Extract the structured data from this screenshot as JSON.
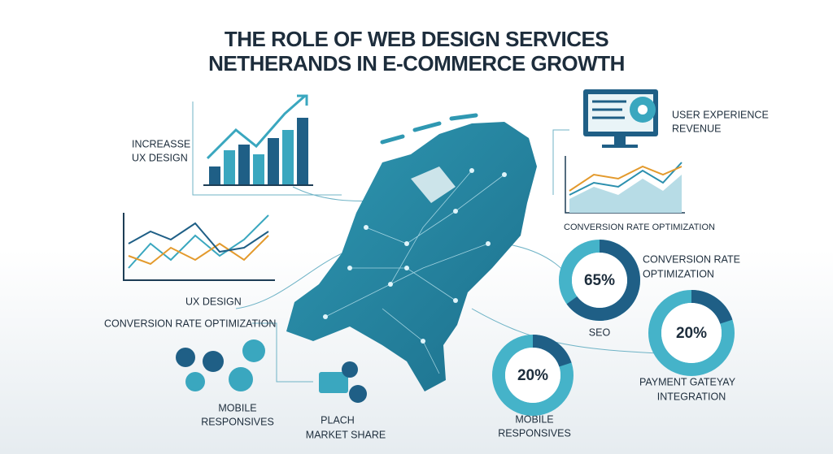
{
  "header": {
    "title_lines": [
      "THE ROLE OF WEB DESIGN SERVICES",
      "NETHERANDS IN E-COMMERCE GROWTH"
    ]
  },
  "labels": {
    "increase": [
      "INCREASSE",
      "UX DESIGN"
    ],
    "user_experience": [
      "USER EXPERIENCE",
      "REVENUE"
    ],
    "cro_chart": [
      "CONVERSION RATE OPTIMIZATION"
    ],
    "cro_donut": [
      "CONVERSION RATE",
      "OPTIMIZATION"
    ],
    "ux_design": [
      "UX DESIGN"
    ],
    "cro_left": [
      "CONVERSION RATE OPTIMIZATION"
    ],
    "mobile_left": [
      "MOBILE",
      "RESPONSIVES"
    ],
    "market_share": [
      "PLACH",
      "MARKET SHARE"
    ],
    "seo": [
      "SEO"
    ],
    "payment": [
      "PAYMENT GATEYAY",
      "INTEGRATION"
    ],
    "mobile_bottom": [
      "MOBILE",
      "RESPONSIVES"
    ]
  },
  "donuts": [
    {
      "value": 65,
      "label": "65%"
    },
    {
      "value": 20,
      "label": "20%"
    },
    {
      "value": 20,
      "label": "20%"
    }
  ]
}
